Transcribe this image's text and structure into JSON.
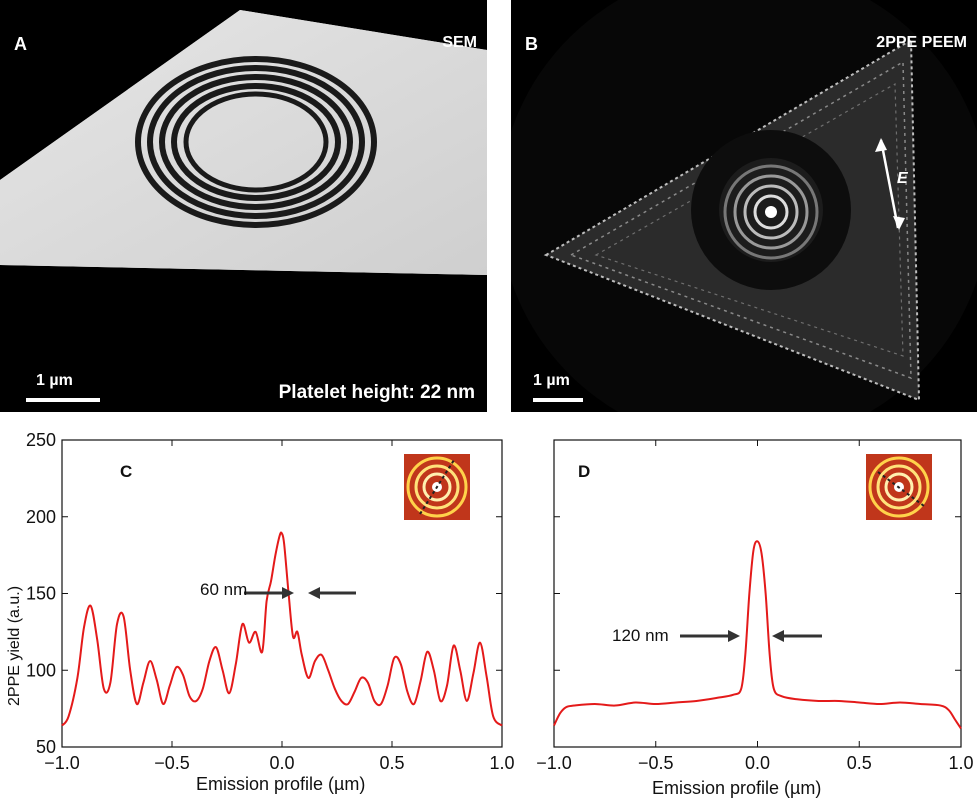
{
  "panels": {
    "A": {
      "letter": "A",
      "tag": "SEM",
      "scale": "1 µm",
      "caption": "Platelet height: 22 nm"
    },
    "B": {
      "letter": "B",
      "tag": "2PPE PEEM",
      "scale": "1 µm",
      "field": "E"
    },
    "C": {
      "letter": "C",
      "annotation": "60 nm"
    },
    "D": {
      "letter": "D",
      "annotation": "120 nm"
    }
  },
  "axes": {
    "xlabel": "Emission profile (µm)",
    "ylabel": "2PPE yield (a.u.)"
  },
  "colors": {
    "curve": "#e41a1a",
    "arrow": "#333333"
  },
  "chart_data": [
    {
      "type": "line",
      "panel": "C",
      "xlim": [
        -1.0,
        1.0
      ],
      "ylim": [
        50,
        250
      ],
      "xticks": [
        "−1.0",
        "−0.5",
        "0.0",
        "0.5",
        "1.0"
      ],
      "yticks": [
        "50",
        "100",
        "150",
        "200",
        "250"
      ],
      "x": [
        -1.0,
        -0.97,
        -0.93,
        -0.9,
        -0.87,
        -0.84,
        -0.81,
        -0.78,
        -0.75,
        -0.72,
        -0.69,
        -0.66,
        -0.63,
        -0.6,
        -0.57,
        -0.54,
        -0.51,
        -0.48,
        -0.45,
        -0.42,
        -0.39,
        -0.36,
        -0.33,
        -0.3,
        -0.27,
        -0.24,
        -0.21,
        -0.18,
        -0.15,
        -0.12,
        -0.09,
        -0.07,
        -0.05,
        -0.03,
        -0.01,
        0.0,
        0.01,
        0.03,
        0.05,
        0.07,
        0.09,
        0.12,
        0.15,
        0.18,
        0.21,
        0.24,
        0.27,
        0.3,
        0.33,
        0.36,
        0.39,
        0.42,
        0.45,
        0.48,
        0.51,
        0.54,
        0.57,
        0.6,
        0.63,
        0.66,
        0.69,
        0.72,
        0.75,
        0.78,
        0.81,
        0.84,
        0.87,
        0.9,
        0.93,
        0.96,
        1.0
      ],
      "y": [
        64,
        70,
        95,
        128,
        142,
        120,
        88,
        92,
        130,
        135,
        100,
        78,
        92,
        106,
        94,
        78,
        90,
        102,
        97,
        83,
        80,
        88,
        106,
        115,
        100,
        85,
        104,
        130,
        118,
        125,
        112,
        145,
        158,
        175,
        188,
        189,
        182,
        150,
        122,
        125,
        110,
        95,
        106,
        110,
        100,
        88,
        80,
        78,
        86,
        95,
        92,
        80,
        78,
        90,
        108,
        104,
        86,
        78,
        93,
        112,
        100,
        80,
        90,
        116,
        100,
        80,
        98,
        118,
        96,
        70,
        64
      ]
    },
    {
      "type": "line",
      "panel": "D",
      "xlim": [
        -1.0,
        1.0
      ],
      "ylim": [
        50,
        250
      ],
      "xticks": [
        "−1.0",
        "−0.5",
        "0.0",
        "0.5",
        "1.0"
      ],
      "x": [
        -1.0,
        -0.97,
        -0.94,
        -0.9,
        -0.8,
        -0.7,
        -0.6,
        -0.5,
        -0.4,
        -0.3,
        -0.2,
        -0.12,
        -0.08,
        -0.06,
        -0.04,
        -0.02,
        0.0,
        0.02,
        0.04,
        0.06,
        0.08,
        0.12,
        0.2,
        0.3,
        0.4,
        0.5,
        0.6,
        0.7,
        0.8,
        0.9,
        0.94,
        0.97,
        1.0
      ],
      "y": [
        64,
        72,
        76,
        77,
        78,
        77,
        79,
        78,
        79,
        80,
        82,
        84,
        88,
        110,
        150,
        178,
        184,
        176,
        150,
        110,
        88,
        83,
        81,
        80,
        80,
        79,
        78,
        79,
        78,
        77,
        74,
        68,
        62
      ]
    }
  ]
}
